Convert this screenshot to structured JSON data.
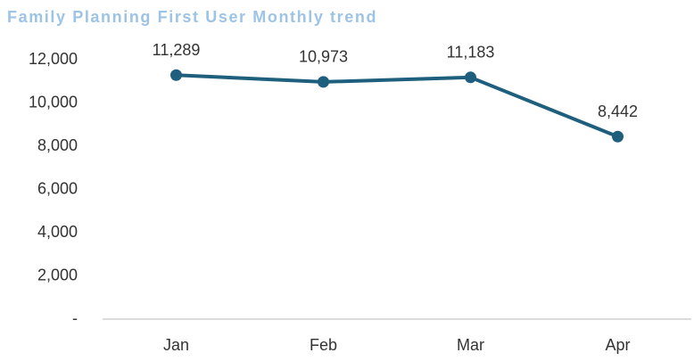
{
  "chart_data": {
    "type": "line",
    "title": "Family Planning First User Monthly trend",
    "categories": [
      "Jan",
      "Feb",
      "Mar",
      "Apr"
    ],
    "series": [
      {
        "name": "First User",
        "color": "#1f5f7e",
        "values": [
          11289,
          10973,
          11183,
          8442
        ],
        "value_labels": [
          "11,289",
          "10,973",
          "11,183",
          "8,442"
        ]
      }
    ],
    "ylim": [
      0,
      13000
    ],
    "yticks": [
      {
        "value": 0,
        "label": "-"
      },
      {
        "value": 2000,
        "label": "2,000"
      },
      {
        "value": 4000,
        "label": "4,000"
      },
      {
        "value": 6000,
        "label": "6,000"
      },
      {
        "value": 8000,
        "label": "8,000"
      },
      {
        "value": 10000,
        "label": "10,000"
      },
      {
        "value": 12000,
        "label": "12,000"
      }
    ],
    "grid": false
  }
}
